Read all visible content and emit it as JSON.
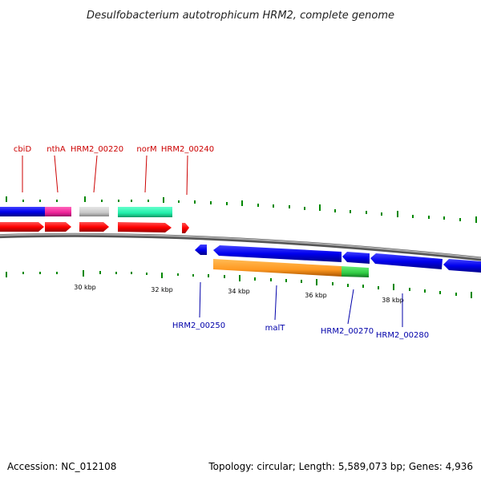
{
  "title": "Desulfobacterium autotrophicum HRM2, complete genome",
  "footer": {
    "accession": "Accession: NC_012108",
    "topology": "Topology: circular; Length: 5,589,073 bp; Genes: 4,936"
  },
  "axis_labels": [
    "30 kbp",
    "32 kbp",
    "34 kbp",
    "36 kbp",
    "38 kbp"
  ],
  "top_labels": [
    "cbiD",
    "nthA",
    "HRM2_00220",
    "norM",
    "HRM2_00240"
  ],
  "bottom_labels": [
    "HRM2_00250",
    "malT",
    "HRM2_00270",
    "HRM2_00280"
  ],
  "colors": {
    "forward_cds": "#ff0000",
    "reverse_cds": "#0000ee",
    "pink_feature": "#ee2299",
    "gray_feature": "#c8c8c8",
    "teal_feature": "#22eeaa",
    "orange_feature": "#ff9922",
    "green_feature": "#33cc44",
    "tick": "#008800",
    "backbone": "#888888",
    "label_top": "#cc0000",
    "label_bottom": "#0000aa"
  }
}
